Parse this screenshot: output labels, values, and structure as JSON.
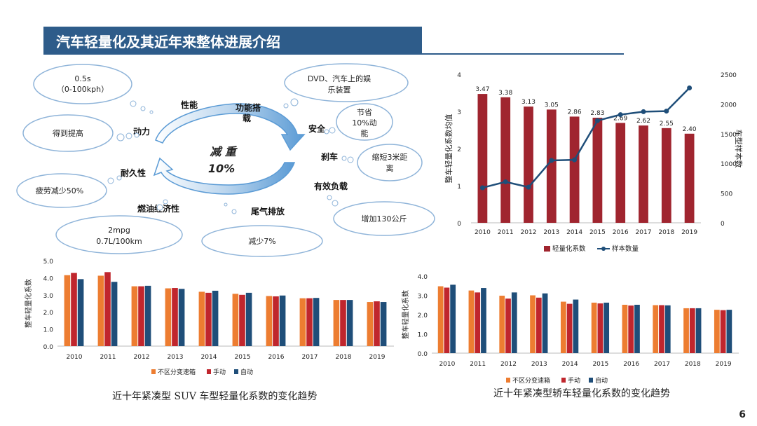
{
  "title": "汽车轻量化及其近年来整体进展介绍",
  "page_number": "6",
  "colors": {
    "brand_blue": "#2e5c8a",
    "bar_red": "#a0252f",
    "line_blue": "#1f4e79",
    "orange": "#ed7d31",
    "red": "#c0262d",
    "navy": "#1f4e79",
    "cloud_border": "#8fb4d9",
    "arrow_blue": "#5b9bd5"
  },
  "diagram": {
    "center_line1": "减 重",
    "center_line2": "10%",
    "benefits": {
      "performance": "性能",
      "function": "功能搭载",
      "power": "动力",
      "safety": "安全",
      "durability": "耐久性",
      "braking": "刹车",
      "payload": "有效负载",
      "fuel_economy": "燃油经济性",
      "emission": "尾气排放"
    },
    "clouds": {
      "accel_line1": "0.5s",
      "accel_line2": "（0-100kph）",
      "improve": "得到提高",
      "dvd_line1": "DVD、汽车上的娱",
      "dvd_line2": "乐装置",
      "energy_line1": "节省",
      "energy_line2": "10%动",
      "energy_line3": "能",
      "fatigue": "疲劳减少50%",
      "brake_line1": "缩短3米距",
      "brake_line2": "离",
      "payload_add": "增加130公斤",
      "mpg_line1": "2mpg",
      "mpg_line2": "0.7L/100km",
      "reduce": "减少7%"
    }
  },
  "chart_data": [
    {
      "type": "bar",
      "id": "overall",
      "title": "",
      "categories": [
        "2010",
        "2011",
        "2012",
        "2013",
        "2014",
        "2015",
        "2016",
        "2017",
        "2018",
        "2019"
      ],
      "series": [
        {
          "name": "轻量化系数",
          "type": "bar",
          "axis": "left",
          "values": [
            3.47,
            3.38,
            3.13,
            3.05,
            2.86,
            2.83,
            2.69,
            2.62,
            2.55,
            2.4
          ]
        },
        {
          "name": "样本数量",
          "type": "line",
          "axis": "right",
          "values": [
            590,
            690,
            600,
            1050,
            1060,
            1720,
            1820,
            1870,
            1880,
            2270
          ]
        }
      ],
      "ylabel": "整车轻量化系数均值",
      "y2label": "车型样本数",
      "ylim": [
        0,
        4
      ],
      "y2lim": [
        0,
        2500
      ],
      "yticks": [
        "0",
        "1",
        "2",
        "3",
        "4"
      ],
      "y2ticks": [
        "0",
        "500",
        "1000",
        "1500",
        "2000",
        "2500"
      ],
      "legend_position": "bottom"
    },
    {
      "type": "bar",
      "id": "suv",
      "title": "近十年紧凑型 SUV 车型轻量化系数的变化趋势",
      "categories": [
        "2010",
        "2011",
        "2012",
        "2013",
        "2014",
        "2015",
        "2016",
        "2017",
        "2018",
        "2019"
      ],
      "series": [
        {
          "name": "不区分变速箱",
          "values": [
            4.15,
            4.12,
            3.5,
            3.38,
            3.18,
            3.06,
            2.93,
            2.8,
            2.7,
            2.58
          ]
        },
        {
          "name": "手动",
          "values": [
            4.28,
            4.33,
            3.5,
            3.4,
            3.12,
            3.0,
            2.91,
            2.8,
            2.7,
            2.62
          ]
        },
        {
          "name": "自动",
          "values": [
            3.92,
            3.76,
            3.53,
            3.35,
            3.24,
            3.12,
            2.96,
            2.82,
            2.7,
            2.58
          ]
        }
      ],
      "ylabel": "整车轻量化系数",
      "ylim": [
        0,
        5
      ],
      "yticks": [
        "0.0",
        "1.0",
        "2.0",
        "3.0",
        "4.0",
        "5.0"
      ],
      "legend_position": "bottom"
    },
    {
      "type": "bar",
      "id": "sedan",
      "title": "近十年紧凑型轿车轻量化系数的变化趋势",
      "categories": [
        "2010",
        "2011",
        "2012",
        "2013",
        "2014",
        "2015",
        "2016",
        "2017",
        "2018",
        "2019"
      ],
      "series": [
        {
          "name": "不区分变速箱",
          "values": [
            3.47,
            3.25,
            2.98,
            3.0,
            2.67,
            2.62,
            2.51,
            2.49,
            2.33,
            2.25
          ]
        },
        {
          "name": "手动",
          "values": [
            3.4,
            3.15,
            2.83,
            2.88,
            2.56,
            2.58,
            2.47,
            2.49,
            2.33,
            2.23
          ]
        },
        {
          "name": "自动",
          "values": [
            3.55,
            3.38,
            3.15,
            3.1,
            2.78,
            2.62,
            2.51,
            2.48,
            2.33,
            2.25
          ]
        }
      ],
      "ylabel": "整车轻量化系数",
      "ylim": [
        0,
        4
      ],
      "yticks": [
        "0.0",
        "1.0",
        "2.0",
        "3.0",
        "4.0"
      ],
      "legend_position": "bottom"
    }
  ]
}
